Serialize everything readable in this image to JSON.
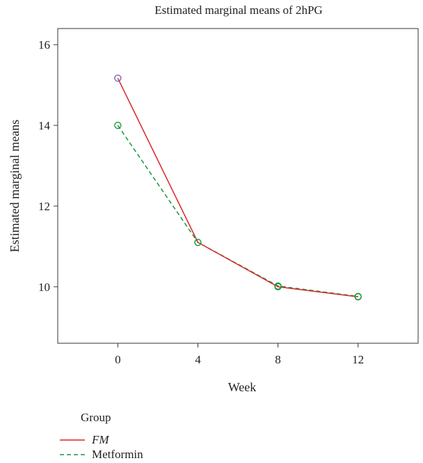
{
  "chart_data": {
    "type": "line",
    "title": "Estimated marginal means of 2hPG",
    "xlabel": "Week",
    "ylabel": "Estimated marginal means",
    "x": [
      0,
      4,
      8,
      12
    ],
    "xticks": [
      "0",
      "4",
      "8",
      "12"
    ],
    "yticks": [
      "10",
      "12",
      "14",
      "16"
    ],
    "xlim": [
      -3,
      15
    ],
    "ylim": [
      8.6,
      16.4
    ],
    "grid": false,
    "legend_position": "bottom-left",
    "legend_title": "Group",
    "series": [
      {
        "name": "FM",
        "values": [
          15.17,
          11.1,
          10.0,
          9.75
        ],
        "color": "#d62728",
        "dash": "solid",
        "marker_color": "#6b5fb5"
      },
      {
        "name": "Metformin",
        "values": [
          14.0,
          11.1,
          10.02,
          9.76
        ],
        "color": "#1a9641",
        "dash": "dashed",
        "marker_color": "#1a9641"
      }
    ]
  }
}
